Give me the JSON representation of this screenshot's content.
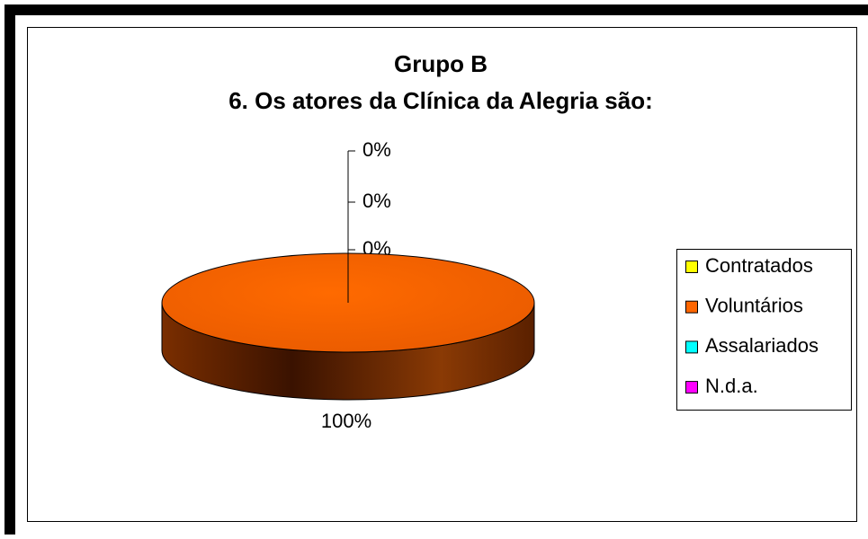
{
  "chart_data": {
    "type": "pie3d",
    "title": "Grupo B",
    "subtitle": "6. Os atores da Clínica da Alegria são:",
    "categories": [
      "Contratados",
      "Voluntários",
      "Assalariados",
      "N.d.a."
    ],
    "values": [
      0,
      100,
      0,
      0
    ],
    "value_labels": [
      "0%",
      "100%",
      "0%",
      "0%"
    ],
    "colors": [
      "#ffff00",
      "#ff6600",
      "#00ffff",
      "#ff00ff"
    ],
    "legend": "right"
  }
}
